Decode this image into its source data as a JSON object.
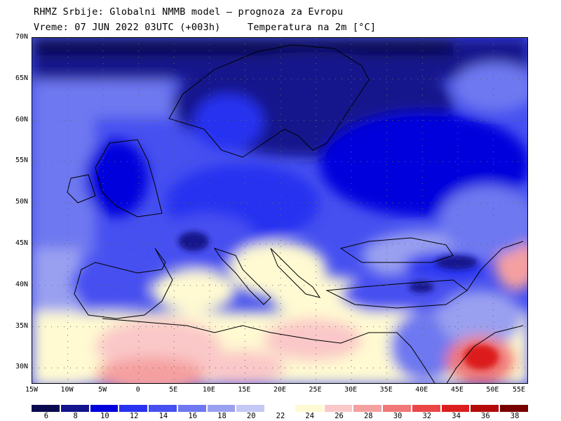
{
  "header": {
    "title": "RHMZ Srbije: Globalni NMMB model — prognoza za Evropu",
    "valid_time": "Vreme: 07 JUN 2022 03UTC (+003h)",
    "parameter": "Temperatura na 2m [°C]"
  },
  "map": {
    "projection": "lat-lon",
    "lon_range": [
      -15,
      55
    ],
    "lat_range": [
      28,
      70
    ],
    "grid": "dotted",
    "lat_ticks": [
      {
        "value": 70,
        "label": "70N"
      },
      {
        "value": 65,
        "label": "65N"
      },
      {
        "value": 60,
        "label": "60N"
      },
      {
        "value": 55,
        "label": "55N"
      },
      {
        "value": 50,
        "label": "50N"
      },
      {
        "value": 45,
        "label": "45N"
      },
      {
        "value": 40,
        "label": "40N"
      },
      {
        "value": 35,
        "label": "35N"
      },
      {
        "value": 30,
        "label": "30N"
      }
    ],
    "lon_ticks": [
      {
        "value": -15,
        "label": "15W"
      },
      {
        "value": -10,
        "label": "10W"
      },
      {
        "value": -5,
        "label": "5W"
      },
      {
        "value": 0,
        "label": "0"
      },
      {
        "value": 5,
        "label": "5E"
      },
      {
        "value": 10,
        "label": "10E"
      },
      {
        "value": 15,
        "label": "15E"
      },
      {
        "value": 20,
        "label": "20E"
      },
      {
        "value": 25,
        "label": "25E"
      },
      {
        "value": 30,
        "label": "30E"
      },
      {
        "value": 35,
        "label": "35E"
      },
      {
        "value": 40,
        "label": "40E"
      },
      {
        "value": 45,
        "label": "45E"
      },
      {
        "value": 50,
        "label": "50E"
      },
      {
        "value": 55,
        "label": "55E"
      }
    ]
  },
  "colorbar": {
    "bins": [
      {
        "color": "#0a0a50"
      },
      {
        "color": "#14148c"
      },
      {
        "color": "#0000dc"
      },
      {
        "color": "#2832f0"
      },
      {
        "color": "#4650f0"
      },
      {
        "color": "#6e78f0"
      },
      {
        "color": "#9aa0f0"
      },
      {
        "color": "#c3c8f5"
      },
      {
        "color": "#ffffff"
      },
      {
        "color": "#fffad2"
      },
      {
        "color": "#fac8c8"
      },
      {
        "color": "#f5a0a0"
      },
      {
        "color": "#f07878"
      },
      {
        "color": "#eb4646"
      },
      {
        "color": "#dc1e1e"
      },
      {
        "color": "#b40a0a"
      },
      {
        "color": "#780000"
      }
    ],
    "labels": [
      "6",
      "8",
      "10",
      "12",
      "14",
      "16",
      "18",
      "20",
      "22",
      "24",
      "26",
      "28",
      "30",
      "32",
      "34",
      "36",
      "38"
    ]
  }
}
